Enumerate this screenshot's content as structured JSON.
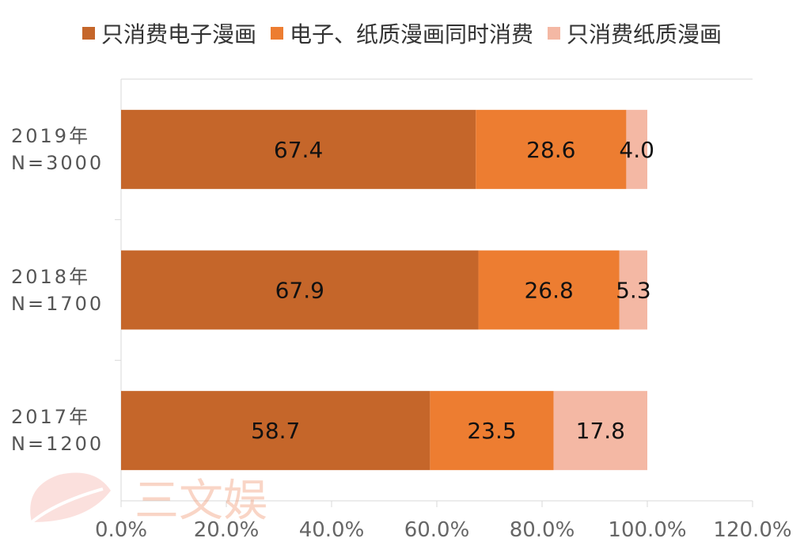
{
  "chart_data": {
    "type": "bar",
    "orientation": "horizontal",
    "stacked": true,
    "categories": [
      {
        "year": "2019年",
        "n": "N=3000"
      },
      {
        "year": "2018年",
        "n": "N=1700"
      },
      {
        "year": "2017年",
        "n": "N=1200"
      }
    ],
    "series": [
      {
        "name": "只消费电子漫画",
        "color": "#C5662A",
        "values": [
          67.4,
          67.9,
          58.7
        ],
        "labels": [
          "67.4",
          "67.9",
          "58.7"
        ]
      },
      {
        "name": "电子、纸质漫画同时消费",
        "color": "#ED7D31",
        "values": [
          28.6,
          26.8,
          23.5
        ],
        "labels": [
          "28.6",
          "26.8",
          "23.5"
        ]
      },
      {
        "name": "只消费纸质漫画",
        "color": "#F4B8A4",
        "values": [
          4.0,
          5.3,
          17.8
        ],
        "labels": [
          "4.0",
          "5.3",
          "17.8"
        ]
      }
    ],
    "xlim": [
      0,
      120
    ],
    "xticks": [
      "0.0%",
      "20.0%",
      "40.0%",
      "60.0%",
      "80.0%",
      "100.0%",
      "120.0%"
    ],
    "grid": true,
    "legend_position": "top"
  },
  "watermark": {
    "text": "三文娱",
    "color": "#F08A5D"
  }
}
